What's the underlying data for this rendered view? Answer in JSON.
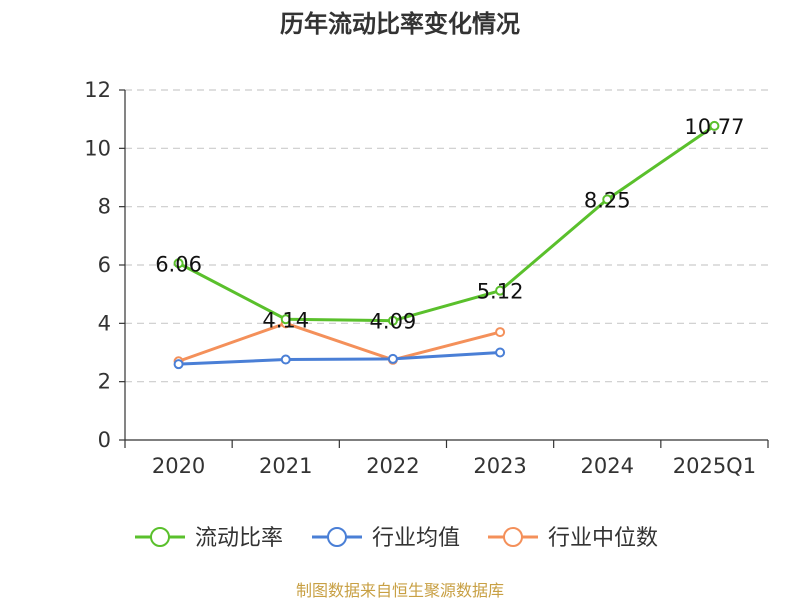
{
  "chart_data": {
    "type": "line",
    "title": "历年流动比率变化情况",
    "categories": [
      "2020",
      "2021",
      "2022",
      "2023",
      "2024",
      "2025Q1"
    ],
    "ylim": [
      0,
      12
    ],
    "yticks": [
      "0",
      "2",
      "4",
      "6",
      "8",
      "10",
      "12"
    ],
    "grid": true,
    "legend_position": "bottom",
    "series": [
      {
        "name": "流动比率",
        "color": "#5ac02c",
        "values": [
          6.06,
          4.14,
          4.09,
          5.12,
          8.25,
          10.77
        ],
        "labels": [
          "6.06",
          "4.14",
          "4.09",
          "5.12",
          "8.25",
          "10.77"
        ]
      },
      {
        "name": "行业均值",
        "color": "#4a7fd6",
        "values": [
          2.6,
          2.76,
          2.78,
          3.0,
          null,
          null
        ]
      },
      {
        "name": "行业中位数",
        "color": "#f4905a",
        "values": [
          2.7,
          4.0,
          2.75,
          3.7,
          null,
          null
        ]
      }
    ],
    "source": "制图数据来自恒生聚源数据库"
  }
}
